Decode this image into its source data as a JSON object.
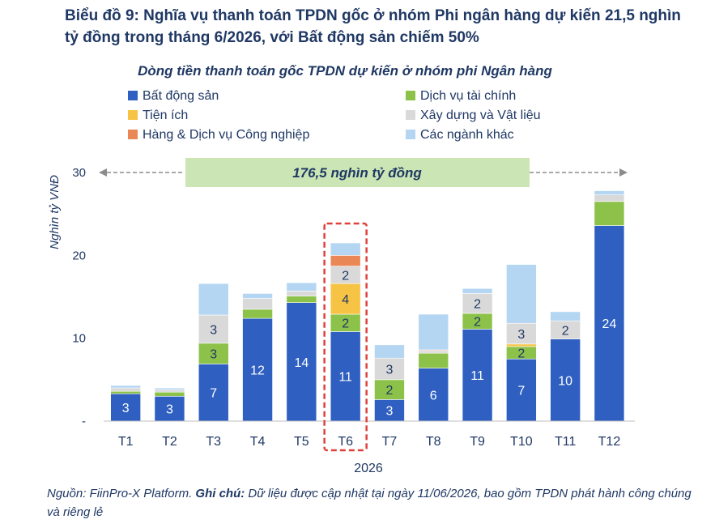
{
  "title": "Biểu đồ 9: Nghĩa vụ thanh toán TPDN gốc ở nhóm Phi ngân hàng dự kiến 21,5 nghìn tỷ đồng trong tháng 6/2026, với Bất động sản chiếm 50%",
  "source": {
    "label1": "Nguồn:",
    "text1": "FiinPro-X Platform.",
    "label2": "Ghi chú:",
    "text2": "Dữ liệu được cập nhật tại ngày 11/06/2026, bao gồm TPDN phát hành công chúng và riêng lẻ"
  },
  "chart_data": {
    "type": "bar",
    "stacked": true,
    "title": "Dòng tiền thanh toán gốc TPDN dự kiến ở nhóm phi Ngân hàng",
    "ylabel": "Nghìn tỷ VNĐ",
    "xlabel": "2026",
    "ylim": [
      0,
      30
    ],
    "yticks": [
      "-",
      "10",
      "20",
      "30"
    ],
    "categories": [
      "T1",
      "T2",
      "T3",
      "T4",
      "T5",
      "T6",
      "T7",
      "T8",
      "T9",
      "T10",
      "T11",
      "T12"
    ],
    "highlight_category": "T6",
    "annotation": "176,5 nghìn tỷ đồng",
    "legend_position": "top",
    "series": [
      {
        "name": "Bất động sản",
        "color": "#2e5fc1",
        "values": [
          3.3,
          3.0,
          6.9,
          12.4,
          14.3,
          10.8,
          2.6,
          6.4,
          11.1,
          7.5,
          9.9,
          23.6
        ],
        "labels": [
          "3",
          "3",
          "7",
          "12",
          "14",
          "11",
          "3",
          "6",
          "11",
          "7",
          "10",
          "24"
        ]
      },
      {
        "name": "Dịch vụ tài chính",
        "color": "#8dc24a",
        "values": [
          0.3,
          0.5,
          2.5,
          1.1,
          0.8,
          2.1,
          2.4,
          1.8,
          1.9,
          1.5,
          0,
          2.9
        ],
        "labels": [
          "",
          "",
          "3",
          "",
          "",
          "2",
          "2",
          "",
          "2",
          "2",
          "",
          ""
        ]
      },
      {
        "name": "Tiện ích",
        "color": "#f6c344",
        "values": [
          0,
          0,
          0,
          0,
          0,
          3.7,
          0,
          0,
          0,
          0.3,
          0,
          0
        ],
        "labels": [
          "",
          "",
          "",
          "",
          "",
          "4",
          "",
          "",
          "",
          "",
          "",
          ""
        ]
      },
      {
        "name": "Xây dựng và Vật liệu",
        "color": "#d9d9d9",
        "values": [
          0.4,
          0.3,
          3.4,
          1.3,
          0.6,
          2.1,
          2.6,
          0.3,
          2.4,
          2.5,
          2.2,
          0.8
        ],
        "labels": [
          "",
          "",
          "3",
          "",
          "",
          "2",
          "3",
          "",
          "2",
          "3",
          "2",
          ""
        ]
      },
      {
        "name": "Hàng & Dịch vụ Công nghiệp",
        "color": "#ea8757",
        "values": [
          0,
          0,
          0,
          0,
          0,
          1.3,
          0,
          0.1,
          0,
          0,
          0,
          0
        ],
        "labels": [
          "",
          "",
          "",
          "",
          "",
          "",
          "",
          "",
          "",
          "",
          "",
          ""
        ]
      },
      {
        "name": "Các ngành khác",
        "color": "#b4d6f2",
        "values": [
          0.3,
          0.2,
          3.8,
          0.6,
          1.0,
          1.5,
          1.6,
          4.3,
          0.6,
          7.1,
          1.1,
          0.5
        ],
        "labels": [
          "",
          "",
          "",
          "",
          "",
          "",
          "",
          "",
          "",
          "",
          "",
          ""
        ]
      }
    ]
  }
}
